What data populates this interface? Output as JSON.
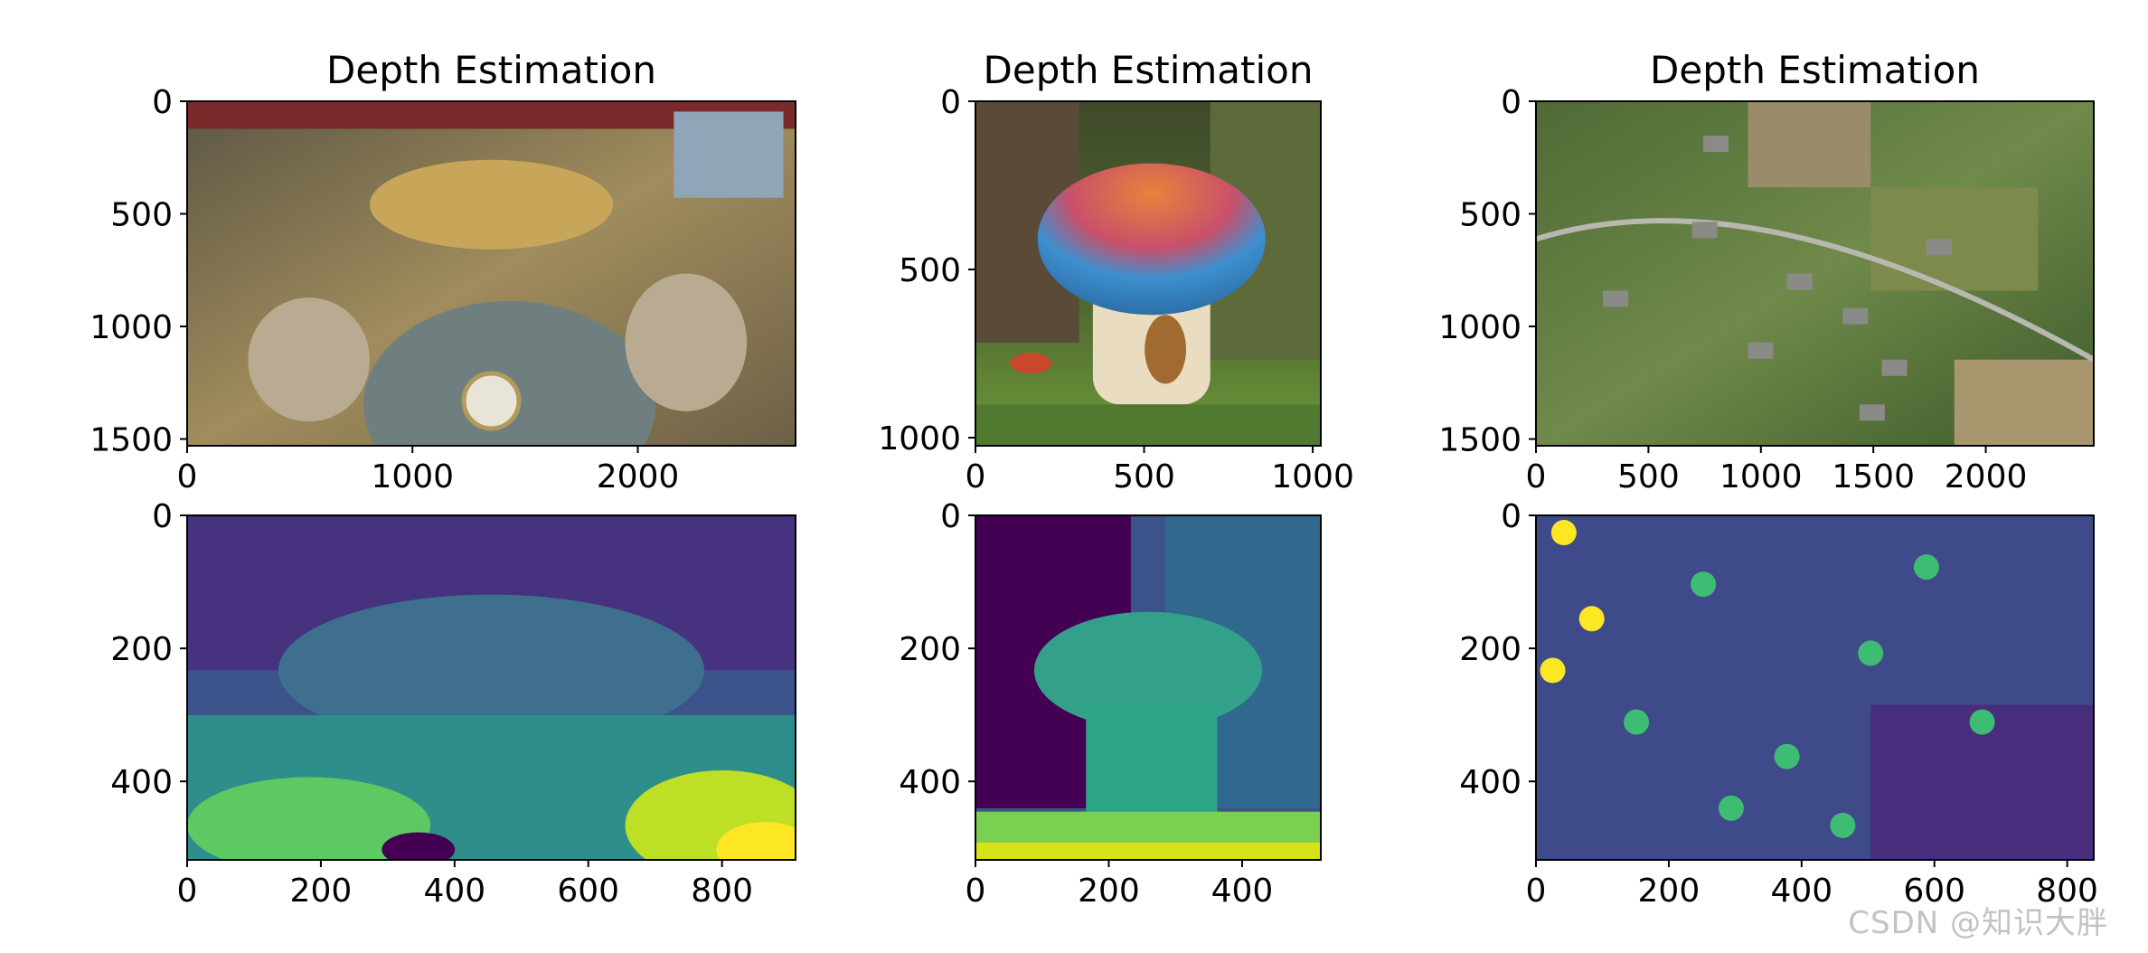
{
  "watermark": "CSDN @知识大胖",
  "chart_data": [
    {
      "type": "image",
      "title": "Depth Estimation",
      "depicts": "ornate baroque interior with gilded statues and a clock",
      "xlim": [
        0,
        2700
      ],
      "ylim": [
        1530,
        0
      ],
      "xticks": [
        0,
        1000,
        2000
      ],
      "yticks": [
        0,
        500,
        1000,
        1500
      ],
      "palette": [
        "#5b5644",
        "#8f8258",
        "#b39a5c",
        "#7d6a4e",
        "#a89a7e"
      ]
    },
    {
      "type": "image",
      "title": "Depth Estimation",
      "depicts": "colorful toy mushroom house in a mossy forest",
      "xlim": [
        0,
        1024
      ],
      "ylim": [
        1024,
        0
      ],
      "xticks": [
        0,
        500,
        1000
      ],
      "yticks": [
        0,
        500,
        1000
      ],
      "palette": [
        "#3f4a2a",
        "#5a7a34",
        "#3d8fcf",
        "#e8833a",
        "#e9dcc0"
      ]
    },
    {
      "type": "image",
      "title": "Depth Estimation",
      "depicts": "aerial view of rural village with fields and roads",
      "xlim": [
        0,
        2480
      ],
      "ylim": [
        1530,
        0
      ],
      "xticks": [
        0,
        500,
        1000,
        1500,
        2000
      ],
      "yticks": [
        0,
        500,
        1000,
        1500
      ],
      "palette": [
        "#4f6a35",
        "#6f8a4a",
        "#9a8c6a",
        "#8a8a86",
        "#3d5a2a"
      ]
    },
    {
      "type": "heatmap",
      "title": "",
      "colormap": "viridis",
      "xlim": [
        0,
        910
      ],
      "ylim": [
        518,
        0
      ],
      "xticks": [
        0,
        200,
        400,
        600,
        800
      ],
      "yticks": [
        0,
        200,
        400
      ]
    },
    {
      "type": "heatmap",
      "title": "",
      "colormap": "viridis",
      "xlim": [
        0,
        518
      ],
      "ylim": [
        518,
        0
      ],
      "xticks": [
        0,
        200,
        400
      ],
      "yticks": [
        0,
        200,
        400
      ]
    },
    {
      "type": "heatmap",
      "title": "",
      "colormap": "viridis",
      "xlim": [
        0,
        840
      ],
      "ylim": [
        518,
        0
      ],
      "xticks": [
        0,
        200,
        400,
        600,
        800
      ],
      "yticks": [
        0,
        200,
        400
      ]
    }
  ]
}
